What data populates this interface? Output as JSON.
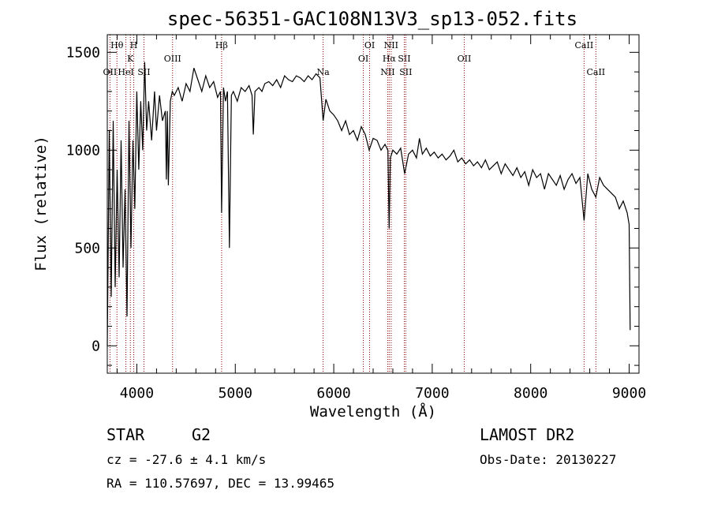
{
  "chart_data": {
    "type": "line",
    "title": "spec-56351-GAC108N13V3_sp13-052.fits",
    "xlabel": "Wavelength (Å)",
    "ylabel": "Flux (relative)",
    "xlim": [
      3700,
      9100
    ],
    "ylim": [
      -140,
      1590
    ],
    "x_ticks": [
      4000,
      5000,
      6000,
      7000,
      8000,
      9000
    ],
    "x_tick_labels": [
      "4000",
      "5000",
      "6000",
      "7000",
      "8000",
      "9000"
    ],
    "y_ticks": [
      0,
      500,
      1000,
      1500
    ],
    "y_tick_labels": [
      "0",
      "500",
      "1000",
      "1500"
    ],
    "grid": false,
    "line_color": "#000000",
    "marker_color": "#8b0000",
    "series": [
      {
        "x": [
          3700,
          3720,
          3740,
          3760,
          3780,
          3800,
          3820,
          3840,
          3860,
          3880,
          3900,
          3920,
          3940,
          3960,
          3980,
          4000,
          4020,
          4040,
          4060,
          4080,
          4100,
          4120,
          4150,
          4180,
          4200,
          4230,
          4260,
          4290,
          4300,
          4310,
          4320,
          4340,
          4360,
          4380,
          4420,
          4460,
          4500,
          4540,
          4580,
          4620,
          4660,
          4700,
          4740,
          4780,
          4820,
          4850,
          4861,
          4880,
          4900,
          4920,
          4940,
          4960,
          4980,
          5020,
          5060,
          5100,
          5140,
          5170,
          5183,
          5200,
          5240,
          5270,
          5300,
          5340,
          5380,
          5420,
          5460,
          5500,
          5540,
          5580,
          5620,
          5660,
          5700,
          5740,
          5780,
          5820,
          5860,
          5892,
          5920,
          5960,
          6000,
          6040,
          6080,
          6120,
          6160,
          6200,
          6240,
          6280,
          6320,
          6360,
          6400,
          6440,
          6480,
          6520,
          6550,
          6563,
          6575,
          6600,
          6640,
          6680,
          6720,
          6760,
          6800,
          6840,
          6870,
          6900,
          6940,
          6980,
          7020,
          7060,
          7100,
          7140,
          7180,
          7220,
          7260,
          7300,
          7340,
          7380,
          7420,
          7460,
          7500,
          7540,
          7580,
          7620,
          7660,
          7700,
          7740,
          7780,
          7820,
          7860,
          7900,
          7940,
          7980,
          8020,
          8060,
          8100,
          8140,
          8180,
          8220,
          8260,
          8300,
          8340,
          8380,
          8420,
          8460,
          8500,
          8542,
          8580,
          8620,
          8662,
          8700,
          8740,
          8780,
          8820,
          8860,
          8900,
          8940,
          8980,
          9000,
          9010
        ],
        "y": [
          0,
          1100,
          250,
          1150,
          300,
          900,
          350,
          1050,
          400,
          800,
          150,
          1150,
          500,
          1050,
          700,
          1300,
          900,
          1250,
          1000,
          1450,
          1100,
          1250,
          1050,
          1300,
          1100,
          1280,
          1150,
          1200,
          850,
          1200,
          820,
          1250,
          1300,
          1280,
          1320,
          1250,
          1340,
          1300,
          1420,
          1360,
          1300,
          1380,
          1320,
          1350,
          1270,
          1300,
          680,
          1320,
          1250,
          1300,
          500,
          1280,
          1300,
          1250,
          1320,
          1300,
          1330,
          1280,
          1080,
          1300,
          1320,
          1300,
          1340,
          1350,
          1330,
          1360,
          1320,
          1380,
          1360,
          1350,
          1380,
          1370,
          1350,
          1380,
          1360,
          1390,
          1370,
          1150,
          1260,
          1200,
          1180,
          1150,
          1100,
          1150,
          1080,
          1100,
          1050,
          1120,
          1080,
          1000,
          1060,
          1050,
          1000,
          1030,
          1000,
          600,
          960,
          1000,
          980,
          1010,
          880,
          980,
          1000,
          960,
          1060,
          980,
          1010,
          970,
          990,
          960,
          980,
          950,
          970,
          1000,
          940,
          960,
          930,
          950,
          920,
          940,
          910,
          950,
          900,
          920,
          940,
          880,
          930,
          900,
          870,
          910,
          860,
          890,
          820,
          900,
          860,
          880,
          800,
          880,
          850,
          820,
          870,
          800,
          850,
          880,
          830,
          860,
          640,
          880,
          800,
          760,
          860,
          820,
          800,
          780,
          760,
          700,
          740,
          680,
          620,
          80
        ]
      }
    ],
    "line_markers": [
      {
        "x": 3727,
        "label": "OII",
        "row": 2
      },
      {
        "x": 3798,
        "label": "Hθ",
        "row": 0
      },
      {
        "x": 3889,
        "label": "HeI",
        "row": 2
      },
      {
        "x": 3934,
        "label": "K",
        "row": 1
      },
      {
        "x": 3969,
        "label": "H",
        "row": 0
      },
      {
        "x": 4072,
        "label": "SII",
        "row": 2
      },
      {
        "x": 4363,
        "label": "OIII",
        "row": 1
      },
      {
        "x": 4861,
        "label": "Hβ",
        "row": 0
      },
      {
        "x": 5892,
        "label": "Na",
        "row": 2
      },
      {
        "x": 6300,
        "label": "OI",
        "row": 1
      },
      {
        "x": 6364,
        "label": "OI",
        "row": 0
      },
      {
        "x": 6548,
        "label": "NII",
        "row": 2
      },
      {
        "x": 6563,
        "label": "Hα",
        "row": 1
      },
      {
        "x": 6583,
        "label": "NII",
        "row": 0
      },
      {
        "x": 6716,
        "label": "SII",
        "row": 1
      },
      {
        "x": 6731,
        "label": "SII",
        "row": 2
      },
      {
        "x": 7325,
        "label": "OII",
        "row": 1
      },
      {
        "x": 8542,
        "label": "CaII",
        "row": 0
      },
      {
        "x": 8662,
        "label": "CaII",
        "row": 2
      }
    ]
  },
  "info": {
    "object_class": "STAR",
    "subclass": "G2",
    "survey": "LAMOST DR2",
    "cz": "cz = -27.6 ± 4.1 km/s",
    "obs_date": "Obs-Date: 20130227",
    "coords": "RA = 110.57697, DEC =  13.99465"
  }
}
